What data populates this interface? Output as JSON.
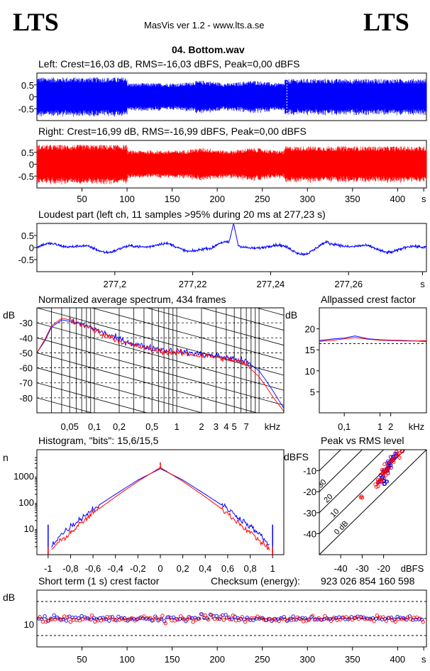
{
  "header": {
    "logo_left": "LTS",
    "logo_right": "LTS",
    "app_title": "MasVis ver 1.2 - www.lts.a.se",
    "file_name": "04. Bottom.wav"
  },
  "colors": {
    "left_channel": "#0000ff",
    "right_channel": "#ff0000",
    "grid": "#000000"
  },
  "chart_data": [
    {
      "id": "left-waveform",
      "type": "line",
      "title": "Left: Crest=16,03 dB, RMS=-16,03 dBFS, Peak=0,00 dBFS",
      "ylim": [
        -1,
        1
      ],
      "yticks": [
        "0.5",
        "0",
        "-0.5"
      ],
      "ytick_values": [
        0.5,
        0,
        -0.5
      ],
      "x_range_s": [
        0,
        432
      ],
      "marker_s": 277.23,
      "series_color": "#0000ff"
    },
    {
      "id": "right-waveform",
      "type": "line",
      "title": "Right: Crest=16,99 dB, RMS=-16,99 dBFS, Peak=0,00 dBFS",
      "ylim": [
        -1,
        1
      ],
      "yticks": [
        "0.5",
        "0",
        "-0.5"
      ],
      "ytick_values": [
        0.5,
        0,
        -0.5
      ],
      "x_range_s": [
        0,
        432
      ],
      "xticks": [
        "50",
        "100",
        "150",
        "200",
        "250",
        "300",
        "350",
        "400",
        "s"
      ],
      "xtick_values": [
        50,
        100,
        150,
        200,
        250,
        300,
        350,
        400,
        429
      ],
      "series_color": "#ff0000"
    },
    {
      "id": "loudest-part",
      "type": "line",
      "title": "Loudest part (left  ch, 11 samples >95% during 20 ms at 277,23 s)",
      "ylim": [
        -1,
        1
      ],
      "yticks": [
        "0.5",
        "0",
        "-0.5"
      ],
      "ytick_values": [
        0.5,
        0,
        -0.5
      ],
      "x_range_s": [
        277.18,
        277.28
      ],
      "xticks": [
        "277,2",
        "277,22",
        "277,24",
        "277,26",
        "s"
      ],
      "xtick_values": [
        277.2,
        277.22,
        277.24,
        277.26,
        277.279
      ],
      "series_color": "#0000ff"
    },
    {
      "id": "spectrum",
      "type": "line",
      "title": "Normalized average spectrum, 434 frames",
      "ylabel": "dB",
      "xlabel": "kHz",
      "xscale": "log",
      "xlim_khz": [
        0.02,
        20
      ],
      "ylim": [
        -90,
        -20
      ],
      "yticks": [
        "-30",
        "-40",
        "-50",
        "-60",
        "-70",
        "-80"
      ],
      "ytick_values": [
        -30,
        -40,
        -50,
        -60,
        -70,
        -80
      ],
      "xticks": [
        "0,05",
        "0,1",
        "0,2",
        "0,5",
        "1",
        "2",
        "3",
        "4",
        "5",
        "7"
      ],
      "xtick_values": [
        0.05,
        0.1,
        0.2,
        0.5,
        1,
        2,
        3,
        4,
        5,
        7
      ],
      "series": [
        {
          "color": "#0000ff",
          "x_khz": [
            0.02,
            0.025,
            0.03,
            0.04,
            0.05,
            0.06,
            0.08,
            0.1,
            0.12,
            0.15,
            0.2,
            0.3,
            0.5,
            0.7,
            1,
            1.5,
            2,
            3,
            4,
            5,
            6,
            7,
            8,
            10,
            12,
            15,
            20
          ],
          "y_db": [
            -50,
            -42,
            -33,
            -28,
            -29,
            -30,
            -32,
            -34,
            -36,
            -38,
            -41,
            -44,
            -47,
            -48,
            -49,
            -50,
            -51,
            -52,
            -53,
            -54,
            -55,
            -56,
            -58,
            -62,
            -68,
            -76,
            -87
          ]
        },
        {
          "color": "#ff0000",
          "x_khz": [
            0.02,
            0.025,
            0.03,
            0.04,
            0.05,
            0.06,
            0.08,
            0.1,
            0.12,
            0.15,
            0.2,
            0.3,
            0.5,
            0.7,
            1,
            1.5,
            2,
            3,
            4,
            5,
            6,
            7,
            8,
            10,
            12,
            15,
            20
          ],
          "y_db": [
            -50,
            -41,
            -32,
            -27,
            -28,
            -30,
            -32,
            -35,
            -37,
            -39,
            -42,
            -45,
            -48,
            -49,
            -50,
            -51,
            -52,
            -53,
            -54,
            -55,
            -56,
            -58,
            -61,
            -66,
            -72,
            -80,
            -89
          ]
        }
      ]
    },
    {
      "id": "allpassed-crest",
      "type": "line",
      "title": "Allpassed crest factor",
      "ylabel": "dB",
      "xlabel": "kHz",
      "xscale": "log",
      "xlim_khz": [
        0.02,
        20
      ],
      "ylim": [
        0,
        25
      ],
      "yticks": [
        "20",
        "15",
        "10",
        "5"
      ],
      "ytick_values": [
        20,
        15,
        10,
        5
      ],
      "xticks": [
        "0,1",
        "1",
        "2"
      ],
      "xtick_values": [
        0.1,
        1,
        2
      ],
      "reference_db": 16.5,
      "series": [
        {
          "color": "#0000ff",
          "x_khz": [
            0.02,
            0.05,
            0.1,
            0.2,
            0.5,
            1,
            2,
            5,
            10,
            20
          ],
          "y_db": [
            17.2,
            17.6,
            17.8,
            18.3,
            17.6,
            17.4,
            17.3,
            17.2,
            17.1,
            17.0
          ]
        },
        {
          "color": "#ff0000",
          "x_khz": [
            0.02,
            0.05,
            0.1,
            0.2,
            0.5,
            1,
            2,
            5,
            10,
            20
          ],
          "y_db": [
            17.0,
            17.3,
            17.6,
            17.9,
            17.5,
            17.3,
            17.2,
            17.1,
            17.1,
            17.2
          ]
        }
      ]
    },
    {
      "id": "histogram",
      "type": "line",
      "title": "Histogram, \"bits\": 15,6/15,5",
      "ylabel": "n",
      "yscale": "log",
      "xlim": [
        -1.1,
        1.1
      ],
      "ylim": [
        1,
        10000
      ],
      "yticks": [
        "1000",
        "100",
        "10"
      ],
      "ytick_values": [
        1000,
        100,
        10
      ],
      "xticks": [
        "-1",
        "-0,8",
        "-0,6",
        "-0,4",
        "-0,2",
        "0",
        "0,2",
        "0,4",
        "0,6",
        "0,8",
        "1"
      ],
      "xtick_values": [
        -1,
        -0.8,
        -0.6,
        -0.4,
        -0.2,
        0,
        0.2,
        0.4,
        0.6,
        0.8,
        1
      ],
      "series": [
        {
          "color": "#0000ff",
          "x": [
            -1,
            -0.98,
            -0.9,
            -0.8,
            -0.6,
            -0.4,
            -0.2,
            0,
            0.2,
            0.4,
            0.6,
            0.8,
            0.9,
            0.98,
            1
          ],
          "y": [
            14,
            2,
            5,
            12,
            55,
            200,
            700,
            1900,
            700,
            200,
            55,
            12,
            5,
            2,
            14
          ]
        },
        {
          "color": "#ff0000",
          "x": [
            -1,
            -0.98,
            -0.9,
            -0.8,
            -0.6,
            -0.4,
            -0.2,
            0,
            0.2,
            0.4,
            0.6,
            0.8,
            0.9,
            0.98,
            1
          ],
          "y": [
            2,
            1.5,
            3,
            7,
            38,
            160,
            620,
            2100,
            620,
            160,
            38,
            7,
            3,
            1.5,
            2
          ]
        }
      ]
    },
    {
      "id": "peak-vs-rms",
      "type": "scatter",
      "title": "Peak vs RMS level",
      "ylabel": "dBFS",
      "xlabel": "dBFS",
      "xlim": [
        -50,
        0
      ],
      "ylim": [
        -50,
        0
      ],
      "xticks": [
        "-40",
        "-30",
        "-20"
      ],
      "xtick_values": [
        -40,
        -30,
        -20
      ],
      "yticks": [
        "-10",
        "-20",
        "-30",
        "-40"
      ],
      "ytick_values": [
        -10,
        -20,
        -30,
        -40
      ],
      "crest_lines": [
        "40",
        "30",
        "20",
        "10",
        "0 dB"
      ],
      "crest_line_values": [
        40,
        30,
        20,
        10,
        0
      ],
      "series": [
        {
          "color": "#0000ff",
          "rms": [
            -22,
            -21,
            -20,
            -19,
            -18,
            -18,
            -17,
            -17,
            -16,
            -16,
            -15,
            -14,
            -20,
            -19,
            -18
          ],
          "peak": [
            -15,
            -13,
            -12,
            -10,
            -9,
            -7,
            -6,
            -8,
            -5,
            -4,
            -3,
            -2,
            -16,
            -14,
            -11
          ]
        },
        {
          "color": "#ff0000",
          "rms": [
            -23,
            -22,
            -21,
            -20,
            -19,
            -18,
            -17,
            -16,
            -15,
            -14,
            -13,
            -12,
            -21,
            -20,
            -19,
            -30
          ],
          "peak": [
            -17,
            -14,
            -13,
            -11,
            -9,
            -8,
            -6,
            -5,
            -4,
            -3,
            -2,
            -1,
            -15,
            -12,
            -10,
            -22
          ]
        }
      ]
    },
    {
      "id": "short-term-crest",
      "type": "scatter",
      "title": "Short term (1 s) crest factor",
      "ylabel": "dB",
      "ylim": [
        0,
        25
      ],
      "yticks": [
        "10"
      ],
      "ytick_values": [
        10
      ],
      "dashed_lines_db": [
        5,
        12.5,
        20
      ],
      "x_range_s": [
        0,
        432
      ],
      "xticks": [
        "50",
        "100",
        "150",
        "200",
        "250",
        "300",
        "350",
        "400",
        "s"
      ],
      "xtick_values": [
        50,
        100,
        150,
        200,
        250,
        300,
        350,
        400,
        429
      ],
      "series": [
        {
          "color": "#0000ff",
          "mean_db": 12.5
        },
        {
          "color": "#ff0000",
          "mean_db": 12.3
        }
      ]
    }
  ],
  "checksum": {
    "label": "Checksum (energy):",
    "value": "923 026 854 160 598"
  }
}
